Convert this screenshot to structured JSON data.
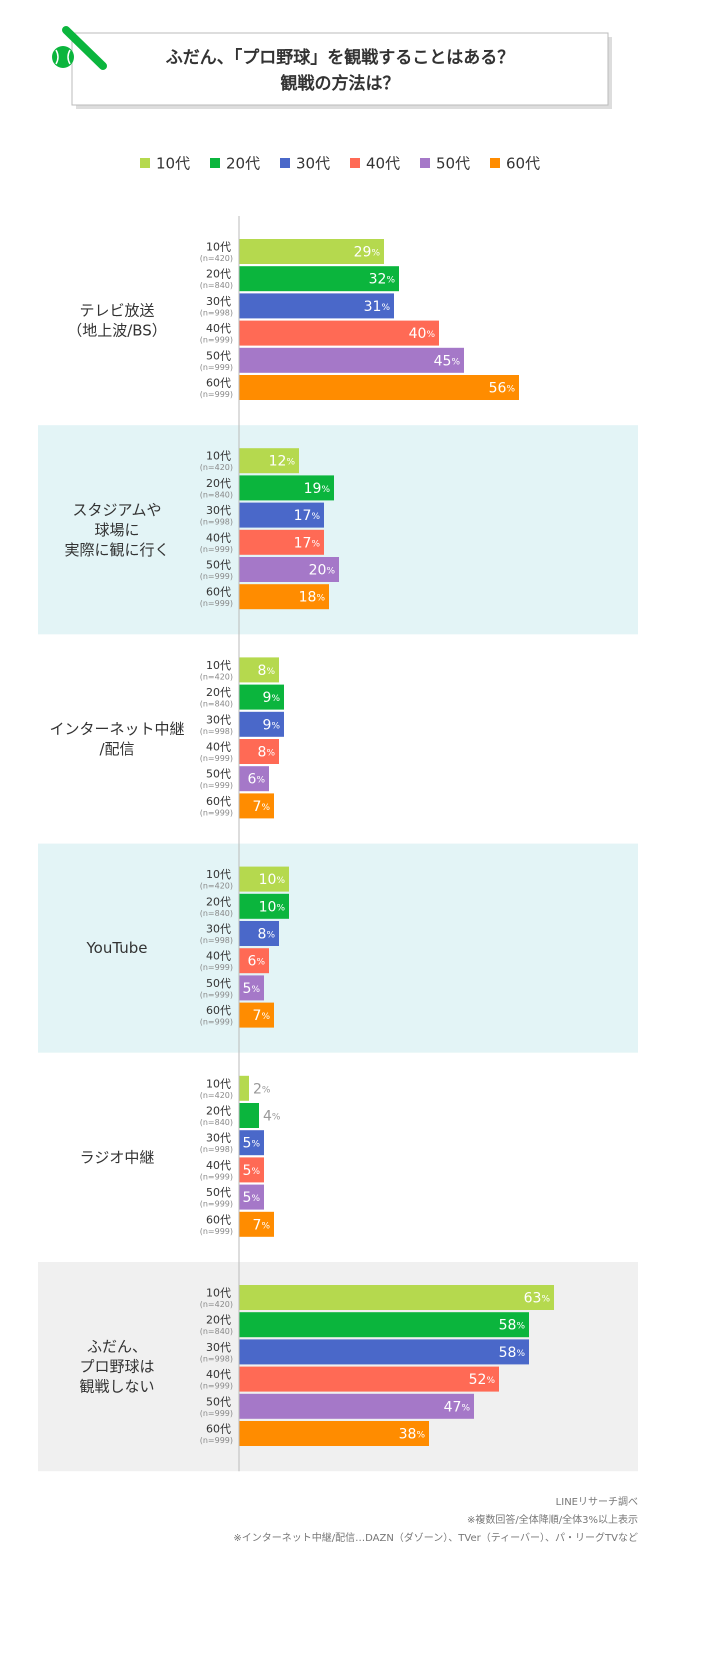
{
  "chart_data": {
    "type": "bar",
    "title": "ふだん、「プロ野球」を観戦することはある？\n観戦の方法は？",
    "categories": [
      "テレビ放送\n（地上波/BS）",
      "スタジアムや\n球場に\n実際に観に行く",
      "インターネット中継\n/配信",
      "YouTube",
      "ラジオ中継",
      "ふだん、\nプロ野球は\n観戦しない"
    ],
    "category_backgrounds": [
      "#ffffff",
      "#e3f4f6",
      "#ffffff",
      "#e3f4f6",
      "#ffffff",
      "#f0f0f0"
    ],
    "xlim": [
      0,
      70
    ],
    "series": [
      {
        "name": "10代",
        "n": "(n=420)",
        "color": "#b5d94e",
        "values": [
          29,
          12,
          8,
          10,
          2,
          63
        ],
        "value_labels": [
          "29%",
          "12%",
          "8%",
          "10%",
          "2%",
          "63%"
        ]
      },
      {
        "name": "20代",
        "n": "(n=840)",
        "color": "#0bb53d",
        "values": [
          32,
          19,
          9,
          10,
          4,
          58
        ],
        "value_labels": [
          "32%",
          "19%",
          "9%",
          "10%",
          "4%",
          "58%"
        ]
      },
      {
        "name": "30代",
        "n": "(n=998)",
        "color": "#4a68c9",
        "values": [
          31,
          17,
          9,
          8,
          5,
          58
        ],
        "value_labels": [
          "31%",
          "17%",
          "9%",
          "8%",
          "5%",
          "58%"
        ]
      },
      {
        "name": "40代",
        "n": "(n=999)",
        "color": "#ff6a55",
        "values": [
          40,
          17,
          8,
          6,
          5,
          52
        ],
        "value_labels": [
          "40%",
          "17%",
          "8%",
          "6%",
          "5%",
          "52%"
        ]
      },
      {
        "name": "50代",
        "n": "(n=999)",
        "color": "#a578c8",
        "values": [
          45,
          20,
          6,
          5,
          5,
          47
        ],
        "value_labels": [
          "45%",
          "20%",
          "6%",
          "5%",
          "5%",
          "47%"
        ]
      },
      {
        "name": "60代",
        "n": "(n=999)",
        "color": "#ff8c00",
        "values": [
          56,
          18,
          7,
          7,
          7,
          38
        ],
        "value_labels": [
          "56%",
          "18%",
          "7%",
          "7%",
          "7%",
          "38%"
        ]
      }
    ],
    "notes": [
      "LINEリサーチ調べ",
      "※複数回答/全体降順/全体3%以上表示",
      "※インターネット中継/配信…DAZN（ダゾーン）、TVer（ティーバー）、パ・リーグTVなど"
    ]
  }
}
